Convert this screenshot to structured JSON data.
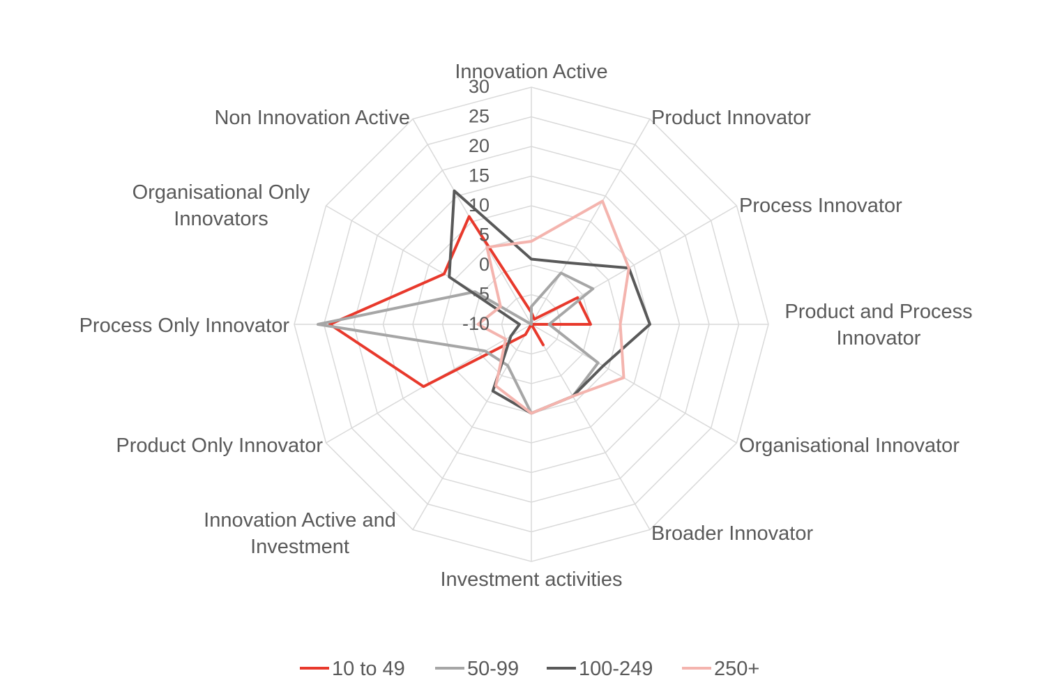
{
  "chart_data": {
    "type": "radar",
    "title": "",
    "categories": [
      "Innovation Active",
      "Product Innovator",
      "Process Innovator",
      "Product and Process Innovator",
      "Organisational Innovator",
      "Broader Innovator",
      "Investment activities",
      "Innovation Active and Investment",
      "Product Only Innovator",
      "Process Only Innovator",
      "Organisational Only Innovators",
      "Non Innovation Active"
    ],
    "ticks": [
      "-10",
      "-5",
      "0",
      "5",
      "10",
      "15",
      "20",
      "25",
      "30"
    ],
    "rlim": [
      -10,
      30
    ],
    "grid": true,
    "legend_position": "bottom",
    "series": [
      {
        "name": "10 to 49",
        "color": "#e8392c",
        "values": [
          -8,
          -9,
          -1,
          0,
          -10,
          -6,
          -10,
          -8,
          11,
          24,
          7,
          11
        ]
      },
      {
        "name": "50-99",
        "color": "#a6a6a6",
        "values": [
          -7,
          0,
          2,
          -7,
          3,
          4,
          5,
          -2,
          -1,
          26,
          1,
          -10
        ]
      },
      {
        "name": "100-249",
        "color": "#595959",
        "values": [
          1,
          2,
          9,
          10,
          4,
          4,
          5,
          3,
          -6,
          -8,
          6,
          16
        ]
      },
      {
        "name": "250+",
        "color": "#f4b4ae",
        "values": [
          4,
          14,
          9,
          5,
          8,
          4,
          5,
          2,
          -5,
          -1,
          -4,
          5
        ]
      }
    ]
  }
}
